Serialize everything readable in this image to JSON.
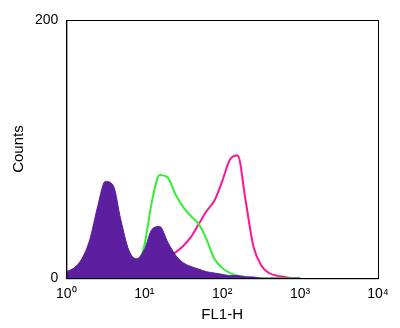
{
  "chart_data": {
    "type": "line",
    "x_label": "FL1-H",
    "y_label": "Counts",
    "log": "x",
    "grid": false,
    "xlim": [
      1,
      10000
    ],
    "xticks": [
      {
        "value": 1,
        "label": "10⁰"
      },
      {
        "value": 10,
        "label": "10¹"
      },
      {
        "value": 100,
        "label": "10²"
      },
      {
        "value": 1000,
        "label": "10³"
      },
      {
        "value": 10000,
        "label": "10⁴"
      }
    ],
    "ylim": [
      0,
      200
    ],
    "yticks": [
      0,
      200
    ],
    "x": [
      1,
      1.26,
      1.58,
      2,
      2.51,
      3.16,
      3.98,
      5.01,
      6.31,
      7.94,
      10,
      12.6,
      15.8,
      20,
      25.1,
      31.6,
      39.8,
      50.1,
      63.1,
      79.4,
      100,
      126,
      158,
      200,
      251,
      316,
      398,
      501,
      631,
      794,
      1000
    ],
    "series": [
      {
        "color": "#5b1fa0",
        "type": "area",
        "values": [
          5,
          8,
          15,
          30,
          55,
          75,
          72,
          45,
          22,
          15,
          22,
          38,
          40,
          28,
          18,
          12,
          9,
          7,
          5,
          4,
          3,
          2,
          2,
          1,
          1,
          0,
          0,
          0,
          0,
          0,
          0
        ]
      },
      {
        "color": "#33ee33",
        "type": "line",
        "values": [
          0,
          0,
          0,
          0,
          0,
          0,
          0,
          1,
          3,
          8,
          25,
          60,
          80,
          78,
          65,
          55,
          48,
          42,
          30,
          15,
          8,
          4,
          2,
          1,
          0,
          0,
          0,
          0,
          0,
          0,
          0
        ]
      },
      {
        "color": "#ff1493",
        "type": "line",
        "values": [
          1,
          1,
          1,
          1,
          2,
          2,
          2,
          2,
          3,
          4,
          5,
          8,
          12,
          16,
          20,
          25,
          32,
          42,
          52,
          60,
          75,
          92,
          95,
          60,
          25,
          10,
          4,
          2,
          1,
          0,
          0
        ]
      }
    ]
  }
}
